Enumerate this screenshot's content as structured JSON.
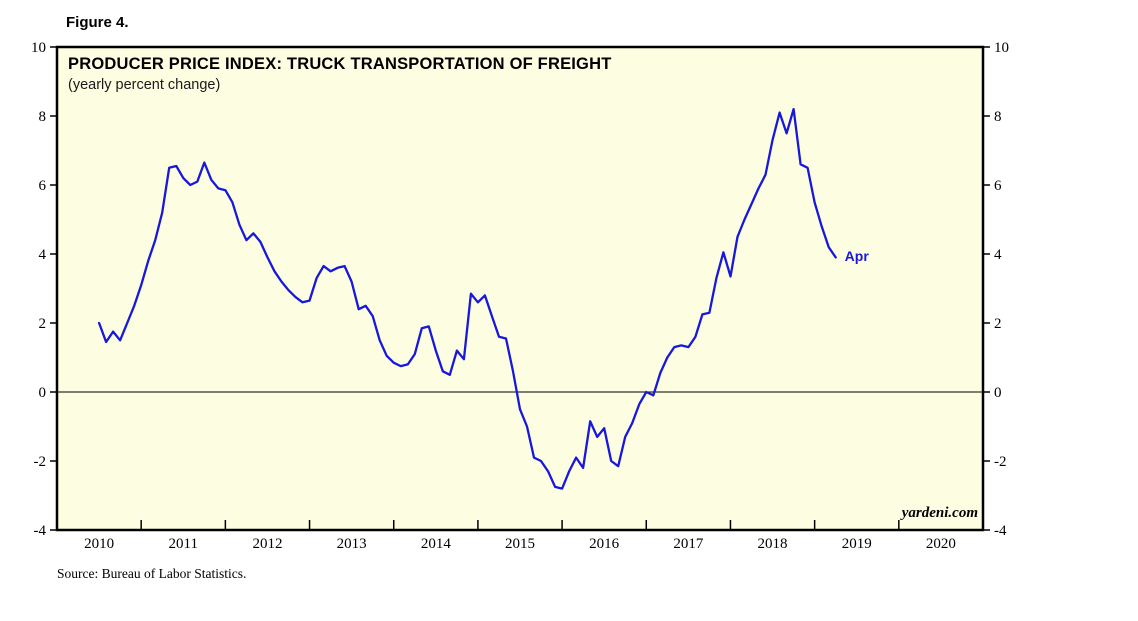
{
  "figure_label": "Figure 4.",
  "source_note": "Source: Bureau of Labor Statistics.",
  "chart_data": {
    "type": "line",
    "title": "PRODUCER PRICE INDEX: TRUCK TRANSPORTATION OF FREIGHT",
    "subtitle": "(yearly percent change)",
    "x_domain": {
      "start_year": 2010,
      "years_span": 11
    },
    "x_year_labels": [
      "2010",
      "2011",
      "2012",
      "2013",
      "2014",
      "2015",
      "2016",
      "2017",
      "2018",
      "2019",
      "2020"
    ],
    "ylim": [
      -4,
      10
    ],
    "yticks": [
      10,
      8,
      6,
      4,
      2,
      0,
      -2,
      -4
    ],
    "grid": false,
    "zero_line": true,
    "legend_position": "none",
    "plot_background": "#fdfde1",
    "axis_color": "#000000",
    "series": [
      {
        "name": "PPI: Truck Transportation of Freight (yearly percent change)",
        "color": "#1717dd",
        "frequency": "monthly",
        "start": "2010-07",
        "end": "2019-04",
        "values": [
          2.0,
          1.45,
          1.75,
          1.5,
          2.0,
          2.5,
          3.1,
          3.8,
          4.4,
          5.2,
          6.5,
          6.55,
          6.2,
          6.0,
          6.1,
          6.65,
          6.15,
          5.9,
          5.85,
          5.5,
          4.85,
          4.4,
          4.6,
          4.35,
          3.9,
          3.5,
          3.2,
          2.95,
          2.75,
          2.6,
          2.65,
          3.3,
          3.65,
          3.5,
          3.6,
          3.65,
          3.2,
          2.4,
          2.5,
          2.2,
          1.5,
          1.05,
          0.85,
          0.75,
          0.8,
          1.1,
          1.85,
          1.9,
          1.2,
          0.6,
          0.5,
          1.2,
          0.95,
          2.85,
          2.6,
          2.8,
          2.2,
          1.6,
          1.55,
          0.6,
          -0.5,
          -1.0,
          -1.9,
          -2.0,
          -2.3,
          -2.75,
          -2.8,
          -2.3,
          -1.9,
          -2.2,
          -0.85,
          -1.3,
          -1.05,
          -2.0,
          -2.15,
          -1.3,
          -0.9,
          -0.35,
          0.0,
          -0.1,
          0.55,
          1.0,
          1.3,
          1.35,
          1.3,
          1.6,
          2.25,
          2.3,
          3.3,
          4.05,
          3.35,
          4.5,
          5.0,
          5.45,
          5.9,
          6.3,
          7.3,
          8.1,
          7.5,
          8.2,
          6.6,
          6.5,
          5.5,
          4.8,
          4.2,
          3.9
        ]
      }
    ],
    "annotation": {
      "text": "Apr",
      "attached_to": "last-point",
      "color": "#1717dd"
    },
    "watermark": "yardeni.com"
  }
}
